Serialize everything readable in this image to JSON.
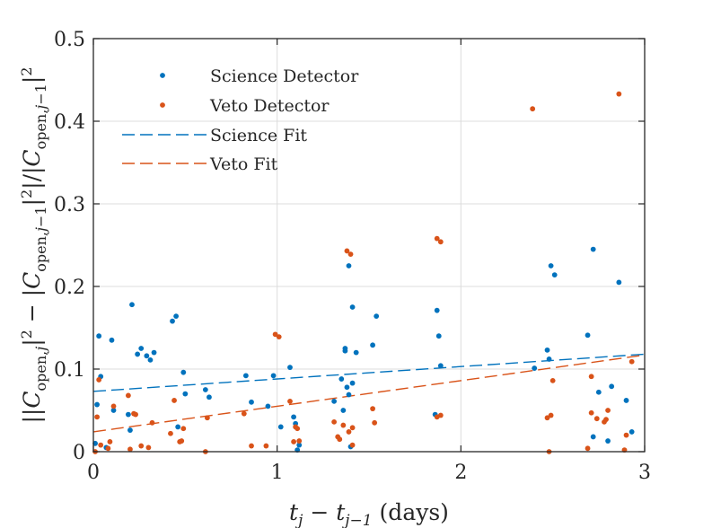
{
  "chart_data": {
    "type": "scatter",
    "title": "",
    "xlabel": "t_j − t_{j−1} (days)",
    "ylabel": "||C_open,j|² − |C_open,j−1|²| / |C_open,j−1|²",
    "xlim": [
      0,
      3
    ],
    "ylim": [
      0,
      0.5
    ],
    "xticks": [
      0,
      1,
      2,
      3
    ],
    "xtick_labels": [
      "0",
      "1",
      "2",
      "3"
    ],
    "yticks": [
      0,
      0.1,
      0.2,
      0.3,
      0.4,
      0.5
    ],
    "ytick_labels": [
      "0",
      "0.1",
      "0.2",
      "0.3",
      "0.4",
      "0.5"
    ],
    "grid": true,
    "legend_position": "top-left",
    "colors": {
      "science": "#0072BD",
      "veto": "#D95319",
      "axis": "#262626",
      "grid": "#dcdcdc"
    },
    "series": [
      {
        "name": "Science Detector",
        "kind": "points",
        "color": "#0072BD",
        "points": [
          [
            0.01,
            0.01
          ],
          [
            0.02,
            0.057
          ],
          [
            0.03,
            0.14
          ],
          [
            0.04,
            0.091
          ],
          [
            0.07,
            0.005
          ],
          [
            0.1,
            0.135
          ],
          [
            0.11,
            0.05
          ],
          [
            0.19,
            0.045
          ],
          [
            0.2,
            0.026
          ],
          [
            0.21,
            0.178
          ],
          [
            0.24,
            0.118
          ],
          [
            0.26,
            0.125
          ],
          [
            0.29,
            0.116
          ],
          [
            0.31,
            0.111
          ],
          [
            0.33,
            0.12
          ],
          [
            0.43,
            0.158
          ],
          [
            0.45,
            0.164
          ],
          [
            0.46,
            0.03
          ],
          [
            0.49,
            0.096
          ],
          [
            0.5,
            0.07
          ],
          [
            0.61,
            0.075
          ],
          [
            0.63,
            0.066
          ],
          [
            0.83,
            0.092
          ],
          [
            0.86,
            0.06
          ],
          [
            0.95,
            0.055
          ],
          [
            0.98,
            0.092
          ],
          [
            1.02,
            0.03
          ],
          [
            1.07,
            0.102
          ],
          [
            1.09,
            0.042
          ],
          [
            1.1,
            0.034
          ],
          [
            1.11,
            0.002
          ],
          [
            1.12,
            0.008
          ],
          [
            1.31,
            0.061
          ],
          [
            1.35,
            0.088
          ],
          [
            1.36,
            0.05
          ],
          [
            1.37,
            0.125
          ],
          [
            1.37,
            0.122
          ],
          [
            1.38,
            0.078
          ],
          [
            1.39,
            0.225
          ],
          [
            1.39,
            0.069
          ],
          [
            1.4,
            0.006
          ],
          [
            1.41,
            0.083
          ],
          [
            1.41,
            0.175
          ],
          [
            1.43,
            0.12
          ],
          [
            1.52,
            0.129
          ],
          [
            1.54,
            0.164
          ],
          [
            1.86,
            0.045
          ],
          [
            1.87,
            0.171
          ],
          [
            1.88,
            0.14
          ],
          [
            1.89,
            0.104
          ],
          [
            2.4,
            0.101
          ],
          [
            2.47,
            0.123
          ],
          [
            2.48,
            0.112
          ],
          [
            2.49,
            0.225
          ],
          [
            2.51,
            0.214
          ],
          [
            2.69,
            0.141
          ],
          [
            2.72,
            0.245
          ],
          [
            2.72,
            0.018
          ],
          [
            2.75,
            0.072
          ],
          [
            2.8,
            0.013
          ],
          [
            2.82,
            0.079
          ],
          [
            2.86,
            0.205
          ],
          [
            2.9,
            0.062
          ],
          [
            2.93,
            0.024
          ]
        ]
      },
      {
        "name": "Veto Detector",
        "kind": "points",
        "color": "#D95319",
        "points": [
          [
            0.01,
            0.0
          ],
          [
            0.02,
            0.042
          ],
          [
            0.03,
            0.087
          ],
          [
            0.04,
            0.008
          ],
          [
            0.08,
            0.004
          ],
          [
            0.09,
            0.012
          ],
          [
            0.11,
            0.055
          ],
          [
            0.19,
            0.068
          ],
          [
            0.2,
            0.003
          ],
          [
            0.22,
            0.046
          ],
          [
            0.23,
            0.045
          ],
          [
            0.26,
            0.007
          ],
          [
            0.3,
            0.005
          ],
          [
            0.32,
            0.035
          ],
          [
            0.42,
            0.022
          ],
          [
            0.44,
            0.062
          ],
          [
            0.47,
            0.012
          ],
          [
            0.48,
            0.013
          ],
          [
            0.49,
            0.028
          ],
          [
            0.61,
            0.0
          ],
          [
            0.62,
            0.041
          ],
          [
            0.82,
            0.046
          ],
          [
            0.86,
            0.007
          ],
          [
            0.94,
            0.007
          ],
          [
            0.99,
            0.142
          ],
          [
            1.01,
            0.139
          ],
          [
            1.07,
            0.061
          ],
          [
            1.09,
            0.012
          ],
          [
            1.1,
            0.03
          ],
          [
            1.11,
            0.028
          ],
          [
            1.12,
            0.013
          ],
          [
            1.31,
            0.036
          ],
          [
            1.33,
            0.018
          ],
          [
            1.34,
            0.015
          ],
          [
            1.36,
            0.032
          ],
          [
            1.38,
            0.243
          ],
          [
            1.39,
            0.024
          ],
          [
            1.4,
            0.239
          ],
          [
            1.41,
            0.029
          ],
          [
            1.41,
            0.008
          ],
          [
            1.52,
            0.052
          ],
          [
            1.53,
            0.035
          ],
          [
            1.87,
            0.258
          ],
          [
            1.87,
            0.042
          ],
          [
            1.89,
            0.254
          ],
          [
            1.89,
            0.044
          ],
          [
            2.39,
            0.415
          ],
          [
            2.47,
            0.041
          ],
          [
            2.48,
            0.0
          ],
          [
            2.49,
            0.044
          ],
          [
            2.5,
            0.086
          ],
          [
            2.69,
            0.004
          ],
          [
            2.71,
            0.091
          ],
          [
            2.71,
            0.047
          ],
          [
            2.74,
            0.04
          ],
          [
            2.78,
            0.036
          ],
          [
            2.79,
            0.039
          ],
          [
            2.8,
            0.05
          ],
          [
            2.86,
            0.433
          ],
          [
            2.89,
            0.002
          ],
          [
            2.9,
            0.02
          ],
          [
            2.93,
            0.109
          ]
        ]
      },
      {
        "name": "Science Fit",
        "kind": "line",
        "style": "dashed",
        "color": "#0072BD",
        "points": [
          [
            0,
            0.073
          ],
          [
            3,
            0.118
          ]
        ]
      },
      {
        "name": "Veto Fit",
        "kind": "line",
        "style": "dashed",
        "color": "#D95319",
        "points": [
          [
            0,
            0.024
          ],
          [
            3,
            0.117
          ]
        ]
      }
    ]
  }
}
